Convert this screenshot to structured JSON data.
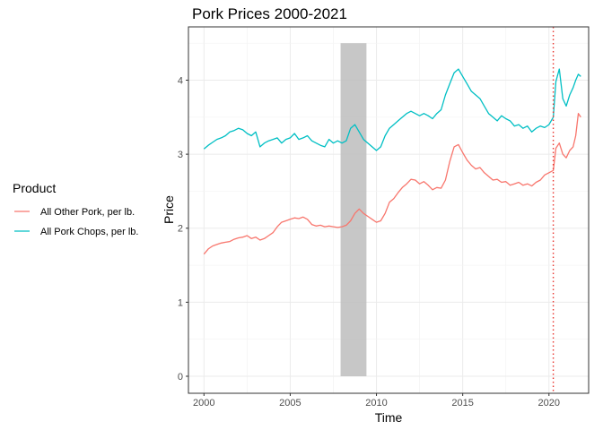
{
  "chart_data": {
    "type": "line",
    "title": "Pork Prices 2000-2021",
    "xlabel": "Time",
    "ylabel": "Price",
    "xlim": [
      1999.1,
      2022.3
    ],
    "ylim": [
      -0.23,
      4.72
    ],
    "xticks": [
      2000,
      2005,
      2010,
      2015,
      2020
    ],
    "xtick_labels": [
      "2000",
      "2005",
      "2010",
      "2015",
      "2020"
    ],
    "yticks": [
      0,
      1,
      2,
      3,
      4
    ],
    "ytick_labels": [
      "0",
      "1",
      "2",
      "3",
      "4"
    ],
    "grid": true,
    "legend": {
      "title": "Product",
      "placement": "left"
    },
    "shaded_region": {
      "x": [
        2007.92,
        2009.42
      ],
      "y": [
        0,
        4.5
      ],
      "color": "#bdbdbd"
    },
    "vline": {
      "x": 2020.25,
      "style": "dotted",
      "color": "#e8352f"
    },
    "series": [
      {
        "name": "All Other Pork, per lb.",
        "color": "#f8766d",
        "points": [
          [
            2000.0,
            1.65
          ],
          [
            2000.25,
            1.72
          ],
          [
            2000.5,
            1.76
          ],
          [
            2000.75,
            1.78
          ],
          [
            2001.0,
            1.8
          ],
          [
            2001.25,
            1.81
          ],
          [
            2001.5,
            1.82
          ],
          [
            2001.75,
            1.85
          ],
          [
            2002.0,
            1.87
          ],
          [
            2002.25,
            1.88
          ],
          [
            2002.5,
            1.9
          ],
          [
            2002.75,
            1.86
          ],
          [
            2003.0,
            1.88
          ],
          [
            2003.25,
            1.84
          ],
          [
            2003.5,
            1.86
          ],
          [
            2003.75,
            1.9
          ],
          [
            2004.0,
            1.94
          ],
          [
            2004.25,
            2.02
          ],
          [
            2004.5,
            2.08
          ],
          [
            2004.75,
            2.1
          ],
          [
            2005.0,
            2.12
          ],
          [
            2005.25,
            2.14
          ],
          [
            2005.5,
            2.13
          ],
          [
            2005.75,
            2.15
          ],
          [
            2006.0,
            2.12
          ],
          [
            2006.25,
            2.05
          ],
          [
            2006.5,
            2.03
          ],
          [
            2006.75,
            2.04
          ],
          [
            2007.0,
            2.02
          ],
          [
            2007.25,
            2.03
          ],
          [
            2007.5,
            2.02
          ],
          [
            2007.75,
            2.01
          ],
          [
            2008.0,
            2.02
          ],
          [
            2008.25,
            2.04
          ],
          [
            2008.5,
            2.1
          ],
          [
            2008.75,
            2.2
          ],
          [
            2009.0,
            2.26
          ],
          [
            2009.25,
            2.2
          ],
          [
            2009.5,
            2.16
          ],
          [
            2009.75,
            2.12
          ],
          [
            2010.0,
            2.08
          ],
          [
            2010.25,
            2.1
          ],
          [
            2010.5,
            2.2
          ],
          [
            2010.75,
            2.35
          ],
          [
            2011.0,
            2.4
          ],
          [
            2011.25,
            2.48
          ],
          [
            2011.5,
            2.55
          ],
          [
            2011.75,
            2.6
          ],
          [
            2012.0,
            2.66
          ],
          [
            2012.25,
            2.65
          ],
          [
            2012.5,
            2.6
          ],
          [
            2012.75,
            2.63
          ],
          [
            2013.0,
            2.58
          ],
          [
            2013.25,
            2.52
          ],
          [
            2013.5,
            2.55
          ],
          [
            2013.75,
            2.54
          ],
          [
            2014.0,
            2.65
          ],
          [
            2014.25,
            2.9
          ],
          [
            2014.5,
            3.1
          ],
          [
            2014.75,
            3.13
          ],
          [
            2015.0,
            3.02
          ],
          [
            2015.25,
            2.92
          ],
          [
            2015.5,
            2.85
          ],
          [
            2015.75,
            2.8
          ],
          [
            2016.0,
            2.82
          ],
          [
            2016.25,
            2.75
          ],
          [
            2016.5,
            2.7
          ],
          [
            2016.75,
            2.65
          ],
          [
            2017.0,
            2.66
          ],
          [
            2017.25,
            2.62
          ],
          [
            2017.5,
            2.63
          ],
          [
            2017.75,
            2.58
          ],
          [
            2018.0,
            2.6
          ],
          [
            2018.25,
            2.62
          ],
          [
            2018.5,
            2.58
          ],
          [
            2018.75,
            2.6
          ],
          [
            2019.0,
            2.57
          ],
          [
            2019.25,
            2.62
          ],
          [
            2019.5,
            2.65
          ],
          [
            2019.75,
            2.72
          ],
          [
            2020.0,
            2.75
          ],
          [
            2020.25,
            2.78
          ],
          [
            2020.4,
            3.08
          ],
          [
            2020.6,
            3.15
          ],
          [
            2020.8,
            3.0
          ],
          [
            2021.0,
            2.95
          ],
          [
            2021.2,
            3.05
          ],
          [
            2021.4,
            3.1
          ],
          [
            2021.55,
            3.25
          ],
          [
            2021.7,
            3.55
          ],
          [
            2021.85,
            3.5
          ]
        ]
      },
      {
        "name": "All Pork Chops, per lb.",
        "color": "#00bfc4",
        "points": [
          [
            2000.0,
            3.07
          ],
          [
            2000.25,
            3.12
          ],
          [
            2000.5,
            3.16
          ],
          [
            2000.75,
            3.2
          ],
          [
            2001.0,
            3.22
          ],
          [
            2001.25,
            3.25
          ],
          [
            2001.5,
            3.3
          ],
          [
            2001.75,
            3.32
          ],
          [
            2002.0,
            3.35
          ],
          [
            2002.25,
            3.33
          ],
          [
            2002.5,
            3.28
          ],
          [
            2002.75,
            3.25
          ],
          [
            2003.0,
            3.3
          ],
          [
            2003.25,
            3.1
          ],
          [
            2003.5,
            3.15
          ],
          [
            2003.75,
            3.18
          ],
          [
            2004.0,
            3.2
          ],
          [
            2004.25,
            3.22
          ],
          [
            2004.5,
            3.15
          ],
          [
            2004.75,
            3.2
          ],
          [
            2005.0,
            3.22
          ],
          [
            2005.25,
            3.28
          ],
          [
            2005.5,
            3.2
          ],
          [
            2005.75,
            3.22
          ],
          [
            2006.0,
            3.25
          ],
          [
            2006.25,
            3.18
          ],
          [
            2006.5,
            3.15
          ],
          [
            2006.75,
            3.12
          ],
          [
            2007.0,
            3.1
          ],
          [
            2007.25,
            3.2
          ],
          [
            2007.5,
            3.15
          ],
          [
            2007.75,
            3.18
          ],
          [
            2008.0,
            3.15
          ],
          [
            2008.25,
            3.18
          ],
          [
            2008.5,
            3.35
          ],
          [
            2008.75,
            3.4
          ],
          [
            2009.0,
            3.3
          ],
          [
            2009.25,
            3.2
          ],
          [
            2009.5,
            3.15
          ],
          [
            2009.75,
            3.1
          ],
          [
            2010.0,
            3.05
          ],
          [
            2010.25,
            3.1
          ],
          [
            2010.5,
            3.25
          ],
          [
            2010.75,
            3.35
          ],
          [
            2011.0,
            3.4
          ],
          [
            2011.25,
            3.45
          ],
          [
            2011.5,
            3.5
          ],
          [
            2011.75,
            3.55
          ],
          [
            2012.0,
            3.58
          ],
          [
            2012.25,
            3.55
          ],
          [
            2012.5,
            3.52
          ],
          [
            2012.75,
            3.55
          ],
          [
            2013.0,
            3.52
          ],
          [
            2013.25,
            3.48
          ],
          [
            2013.5,
            3.55
          ],
          [
            2013.75,
            3.6
          ],
          [
            2014.0,
            3.8
          ],
          [
            2014.25,
            3.95
          ],
          [
            2014.5,
            4.1
          ],
          [
            2014.75,
            4.15
          ],
          [
            2015.0,
            4.05
          ],
          [
            2015.25,
            3.95
          ],
          [
            2015.5,
            3.85
          ],
          [
            2015.75,
            3.8
          ],
          [
            2016.0,
            3.75
          ],
          [
            2016.25,
            3.65
          ],
          [
            2016.5,
            3.55
          ],
          [
            2016.75,
            3.5
          ],
          [
            2017.0,
            3.45
          ],
          [
            2017.25,
            3.52
          ],
          [
            2017.5,
            3.48
          ],
          [
            2017.75,
            3.45
          ],
          [
            2018.0,
            3.38
          ],
          [
            2018.25,
            3.4
          ],
          [
            2018.5,
            3.35
          ],
          [
            2018.75,
            3.38
          ],
          [
            2019.0,
            3.3
          ],
          [
            2019.25,
            3.35
          ],
          [
            2019.5,
            3.38
          ],
          [
            2019.75,
            3.36
          ],
          [
            2020.0,
            3.4
          ],
          [
            2020.25,
            3.5
          ],
          [
            2020.4,
            3.98
          ],
          [
            2020.6,
            4.15
          ],
          [
            2020.8,
            3.75
          ],
          [
            2021.0,
            3.65
          ],
          [
            2021.2,
            3.8
          ],
          [
            2021.4,
            3.9
          ],
          [
            2021.55,
            4.0
          ],
          [
            2021.7,
            4.08
          ],
          [
            2021.85,
            4.05
          ]
        ]
      }
    ]
  }
}
